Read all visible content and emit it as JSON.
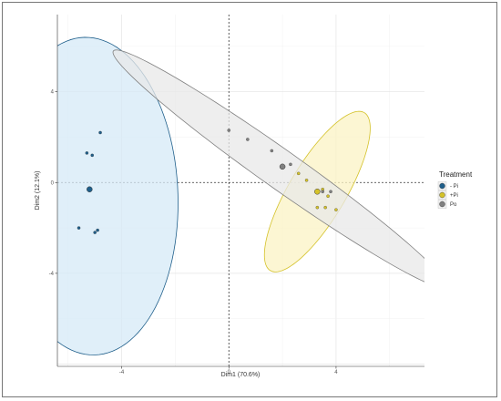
{
  "chart_data": {
    "type": "scatter",
    "title": "",
    "xlabel": "Dim1 (70.6%)",
    "ylabel": "Dim2 (12.1%)",
    "xlim": [
      -6.4,
      7.3
    ],
    "ylim": [
      -8.1,
      7.4
    ],
    "x_ticks": [
      -4,
      0,
      4
    ],
    "y_ticks": [
      -4,
      0,
      4
    ],
    "x_tick_labels": [
      "-4",
      "0",
      "4"
    ],
    "y_tick_labels": [
      "-4",
      "0",
      "4"
    ],
    "grid": true,
    "reference_lines": {
      "x": 0,
      "y": 0,
      "style": "dashed"
    },
    "legend": {
      "title": "Treatment",
      "position": "right",
      "entries": [
        {
          "label": "- Pi",
          "color": "#1f5f8b"
        },
        {
          "label": "+Pi",
          "color": "#d4c22a"
        },
        {
          "label": "Po",
          "color": "#808080"
        }
      ]
    },
    "series": [
      {
        "name": "- Pi",
        "color": "#1f5f8b",
        "fill": "#d6eaf7",
        "points": [
          {
            "x": -4.8,
            "y": 2.2
          },
          {
            "x": -5.3,
            "y": 1.3
          },
          {
            "x": -5.1,
            "y": 1.2
          },
          {
            "x": -5.6,
            "y": -2.0
          },
          {
            "x": -5.0,
            "y": -2.2
          },
          {
            "x": -4.9,
            "y": -2.1
          }
        ],
        "centroid": {
          "x": -5.2,
          "y": -0.3
        },
        "ellipse": {
          "cx": -5.2,
          "cy": -0.6,
          "rx": 3.3,
          "ry": 7.0,
          "angle": 1.5
        }
      },
      {
        "name": "+Pi",
        "color": "#d4c22a",
        "fill": "#fbf3c4",
        "points": [
          {
            "x": 2.6,
            "y": 0.4
          },
          {
            "x": 2.9,
            "y": 0.1
          },
          {
            "x": 3.5,
            "y": -0.3
          },
          {
            "x": 3.7,
            "y": -0.6
          },
          {
            "x": 3.3,
            "y": -1.1
          },
          {
            "x": 3.6,
            "y": -1.1
          },
          {
            "x": 4.0,
            "y": -1.2
          }
        ],
        "centroid": {
          "x": 3.3,
          "y": -0.4
        },
        "ellipse": {
          "cx": 3.3,
          "cy": -0.4,
          "rx": 1.1,
          "ry": 3.9,
          "angle": -26
        }
      },
      {
        "name": "Po",
        "color": "#808080",
        "fill": "#e8e8e8",
        "points": [
          {
            "x": 0.0,
            "y": 2.3
          },
          {
            "x": 0.7,
            "y": 1.9
          },
          {
            "x": 1.6,
            "y": 1.4
          },
          {
            "x": 2.3,
            "y": 0.8
          },
          {
            "x": 3.5,
            "y": -0.4
          },
          {
            "x": 3.8,
            "y": -0.4
          }
        ],
        "centroid": {
          "x": 2.0,
          "y": 0.7
        },
        "ellipse": {
          "cx": 1.9,
          "cy": 0.6,
          "rx": 8.1,
          "ry": 0.8,
          "angle": -40
        }
      }
    ]
  }
}
